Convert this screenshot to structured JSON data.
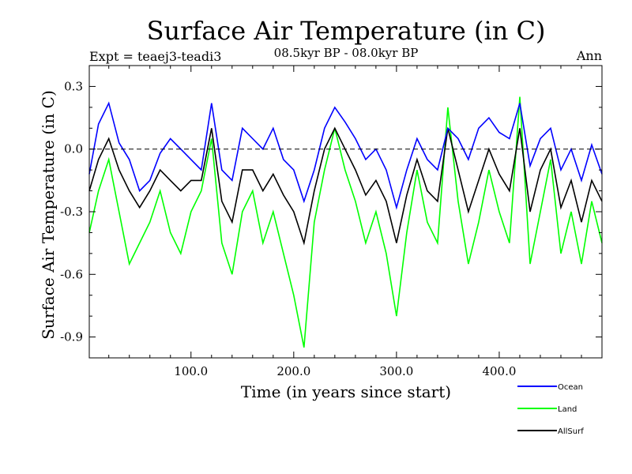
{
  "chart_data": {
    "type": "line",
    "title": "Surface Air Temperature (in C)",
    "subtitle": "08.5kyr BP - 08.0kyr BP",
    "experiment_label": "Expt = teaej3-teadi3",
    "season_label": "Ann",
    "xlabel": "Time (in years since start)",
    "ylabel": "Surface Air Temperature (in C)",
    "xlim": [
      1,
      500
    ],
    "ylim": [
      -1.0,
      0.4
    ],
    "xticks": [
      100,
      200,
      300,
      400
    ],
    "xtick_labels": [
      "100.0",
      "200.0",
      "300.0",
      "400.0"
    ],
    "yticks": [
      0.3,
      0.0,
      -0.3,
      -0.6,
      -0.9
    ],
    "ytick_labels": [
      "0.3",
      "0.0",
      "-0.3",
      "-0.6",
      "-0.9"
    ],
    "reference_line": 0.0,
    "legend_position": "bottom-right",
    "series": [
      {
        "name": "Ocean",
        "color": "#0000ff",
        "x": [
          1,
          10,
          20,
          30,
          40,
          50,
          60,
          70,
          80,
          90,
          100,
          110,
          120,
          130,
          140,
          150,
          160,
          170,
          180,
          190,
          200,
          210,
          220,
          230,
          240,
          250,
          260,
          270,
          280,
          290,
          300,
          310,
          320,
          330,
          340,
          350,
          360,
          370,
          380,
          390,
          400,
          410,
          420,
          430,
          440,
          450,
          460,
          470,
          480,
          490,
          500
        ],
        "values": [
          -0.12,
          0.12,
          0.22,
          0.03,
          -0.05,
          -0.2,
          -0.15,
          -0.02,
          0.05,
          0.0,
          -0.05,
          -0.1,
          0.22,
          -0.1,
          -0.15,
          0.1,
          0.05,
          0.0,
          0.1,
          -0.05,
          -0.1,
          -0.25,
          -0.1,
          0.1,
          0.2,
          0.13,
          0.05,
          -0.05,
          0.0,
          -0.1,
          -0.28,
          -0.1,
          0.05,
          -0.05,
          -0.1,
          0.1,
          0.05,
          -0.05,
          0.1,
          0.15,
          0.08,
          0.05,
          0.22,
          -0.08,
          0.05,
          0.1,
          -0.1,
          0.0,
          -0.15,
          0.02,
          -0.12
        ]
      },
      {
        "name": "Land",
        "color": "#00ff00",
        "x": [
          1,
          10,
          20,
          30,
          40,
          50,
          60,
          70,
          80,
          90,
          100,
          110,
          120,
          130,
          140,
          150,
          160,
          170,
          180,
          190,
          200,
          210,
          220,
          230,
          240,
          250,
          260,
          270,
          280,
          290,
          300,
          310,
          320,
          330,
          340,
          350,
          360,
          370,
          380,
          390,
          400,
          410,
          420,
          430,
          440,
          450,
          460,
          470,
          480,
          490,
          500
        ],
        "values": [
          -0.4,
          -0.2,
          -0.05,
          -0.3,
          -0.55,
          -0.45,
          -0.35,
          -0.2,
          -0.4,
          -0.5,
          -0.3,
          -0.2,
          0.05,
          -0.45,
          -0.6,
          -0.3,
          -0.2,
          -0.45,
          -0.3,
          -0.5,
          -0.7,
          -0.95,
          -0.35,
          -0.1,
          0.1,
          -0.1,
          -0.25,
          -0.45,
          -0.3,
          -0.5,
          -0.8,
          -0.4,
          -0.1,
          -0.35,
          -0.45,
          0.2,
          -0.25,
          -0.55,
          -0.35,
          -0.1,
          -0.3,
          -0.45,
          0.25,
          -0.55,
          -0.3,
          -0.05,
          -0.5,
          -0.3,
          -0.55,
          -0.25,
          -0.45
        ]
      },
      {
        "name": "AllSurf",
        "color": "#000000",
        "x": [
          1,
          10,
          20,
          30,
          40,
          50,
          60,
          70,
          80,
          90,
          100,
          110,
          120,
          130,
          140,
          150,
          160,
          170,
          180,
          190,
          200,
          210,
          220,
          230,
          240,
          250,
          260,
          270,
          280,
          290,
          300,
          310,
          320,
          330,
          340,
          350,
          360,
          370,
          380,
          390,
          400,
          410,
          420,
          430,
          440,
          450,
          460,
          470,
          480,
          490,
          500
        ],
        "values": [
          -0.2,
          -0.05,
          0.05,
          -0.1,
          -0.2,
          -0.28,
          -0.2,
          -0.1,
          -0.15,
          -0.2,
          -0.15,
          -0.15,
          0.1,
          -0.25,
          -0.35,
          -0.1,
          -0.1,
          -0.2,
          -0.12,
          -0.22,
          -0.3,
          -0.45,
          -0.2,
          0.0,
          0.1,
          0.0,
          -0.1,
          -0.22,
          -0.15,
          -0.25,
          -0.45,
          -0.22,
          -0.05,
          -0.2,
          -0.25,
          0.1,
          -0.1,
          -0.3,
          -0.15,
          0.0,
          -0.12,
          -0.2,
          0.1,
          -0.3,
          -0.1,
          0.0,
          -0.28,
          -0.15,
          -0.35,
          -0.15,
          -0.25
        ]
      }
    ]
  }
}
